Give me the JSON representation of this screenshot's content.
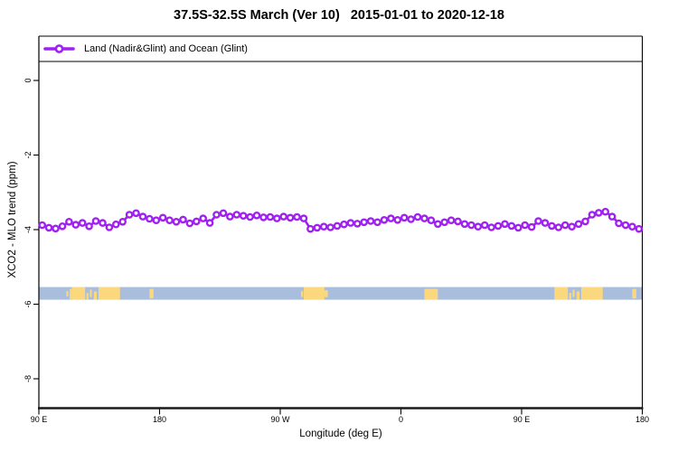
{
  "chart_data": {
    "type": "line",
    "title": "37.5S-32.5S March (Ver 10)   2015-01-01 to 2020-12-18",
    "xlabel": "Longitude (deg E)",
    "ylabel": "XCO2 - MLO trend (ppm)",
    "grid": false,
    "legend_position": "top-strip-full-width",
    "xlim_deg_east_continuous": [
      90,
      540
    ],
    "ylim_ppm": [
      -8.8,
      1.2
    ],
    "x_ticks": {
      "lons": [
        90,
        180,
        270,
        360,
        450,
        540
      ],
      "labels": [
        "90 E",
        "180",
        "90 W",
        "0",
        "90 E",
        "180"
      ]
    },
    "y_ticks": {
      "values": [
        0,
        -2,
        -4,
        -6,
        -8
      ],
      "labels": [
        "0",
        "-2",
        "-4",
        "-6",
        "-8"
      ]
    },
    "legend": [
      {
        "label": "Land (Nadir&Glint) and Ocean (Glint)",
        "color": "#A020F0",
        "marker": "open-circle"
      }
    ],
    "series": [
      {
        "name": "Land (Nadir&Glint) and Ocean (Glint)",
        "color": "#A020F0",
        "marker": "open-circle",
        "lon_start_deg_east": 92.5,
        "lon_step_deg": 5,
        "values_ppm": [
          -3.88,
          -3.95,
          -3.97,
          -3.91,
          -3.79,
          -3.87,
          -3.82,
          -3.91,
          -3.77,
          -3.82,
          -3.94,
          -3.86,
          -3.79,
          -3.6,
          -3.56,
          -3.65,
          -3.71,
          -3.75,
          -3.68,
          -3.75,
          -3.79,
          -3.73,
          -3.83,
          -3.78,
          -3.7,
          -3.82,
          -3.6,
          -3.56,
          -3.65,
          -3.6,
          -3.63,
          -3.66,
          -3.62,
          -3.67,
          -3.66,
          -3.7,
          -3.65,
          -3.68,
          -3.66,
          -3.7,
          -3.98,
          -3.95,
          -3.92,
          -3.94,
          -3.9,
          -3.86,
          -3.82,
          -3.84,
          -3.8,
          -3.77,
          -3.8,
          -3.74,
          -3.7,
          -3.74,
          -3.68,
          -3.72,
          -3.66,
          -3.7,
          -3.75,
          -3.85,
          -3.8,
          -3.75,
          -3.78,
          -3.85,
          -3.88,
          -3.92,
          -3.88,
          -3.94,
          -3.9,
          -3.85,
          -3.9,
          -3.95,
          -3.88,
          -3.93,
          -3.77,
          -3.82,
          -3.9,
          -3.94,
          -3.88,
          -3.92,
          -3.85,
          -3.78,
          -3.6,
          -3.55,
          -3.52,
          -3.65,
          -3.83,
          -3.88,
          -3.92,
          -3.98
        ]
      }
    ],
    "map_strip": {
      "ppm_top": -5.54,
      "ppm_bottom": -5.88,
      "ocean_color": "#A9BEDC",
      "land_color": "#FBD87E",
      "land_segments_lon": [
        [
          110.5,
          112.0,
          0.3,
          0.75
        ],
        [
          113.0,
          114.5,
          0.15,
          1.0
        ],
        [
          114.5,
          124.5,
          0.0,
          1.0
        ],
        [
          125.5,
          127.0,
          0.45,
          1.0
        ],
        [
          128.0,
          129.5,
          0.2,
          0.8
        ],
        [
          131.0,
          133.2,
          0.35,
          1.0
        ],
        [
          134.5,
          150.5,
          0.0,
          1.0
        ],
        [
          172.5,
          175.5,
          0.15,
          0.9
        ],
        [
          285.5,
          287.0,
          0.3,
          0.8
        ],
        [
          287.5,
          303.0,
          0.0,
          1.0
        ],
        [
          303.0,
          305.5,
          0.25,
          0.8
        ],
        [
          377.5,
          387.5,
          0.15,
          1.0
        ],
        [
          474.5,
          484.5,
          0.0,
          1.0
        ],
        [
          485.5,
          487.0,
          0.45,
          1.0
        ],
        [
          488.0,
          489.5,
          0.2,
          0.8
        ],
        [
          491.0,
          493.2,
          0.35,
          1.0
        ],
        [
          494.5,
          510.5,
          0.0,
          1.0
        ],
        [
          532.5,
          535.5,
          0.15,
          0.9
        ]
      ]
    }
  }
}
